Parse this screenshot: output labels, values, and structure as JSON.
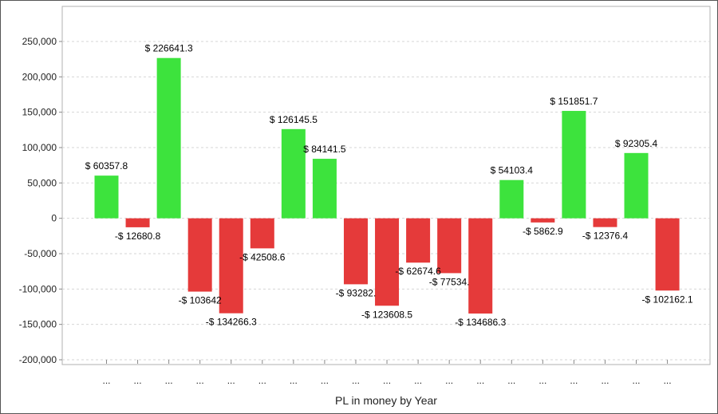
{
  "chart_data": {
    "type": "bar",
    "xlabel": "PL in money by Year",
    "ylabel": "",
    "ylim": [
      -200000,
      250000
    ],
    "yticks": [
      250000,
      200000,
      150000,
      100000,
      50000,
      0,
      -50000,
      -100000,
      -150000,
      -200000
    ],
    "ytick_labels": [
      "250,000",
      "200,000",
      "150,000",
      "100,000",
      "50,000",
      "0",
      "-50,000",
      "-100,000",
      "-150,000",
      "-200,000"
    ],
    "grid": true,
    "positive_color": "#3de33d",
    "negative_color": "#e53a3a",
    "categories": [
      "...",
      "...",
      "...",
      "...",
      "...",
      "...",
      "...",
      "...",
      "...",
      "...",
      "...",
      "...",
      "...",
      "...",
      "...",
      "...",
      "...",
      "...",
      "..."
    ],
    "values": [
      60357.8,
      -12680.8,
      226641.3,
      -103642,
      -134266.3,
      -42508.6,
      126145.5,
      84141.5,
      -93282,
      -123608.5,
      -62674.6,
      -77534,
      -134686.3,
      54103.4,
      -5862.9,
      151851.7,
      -12376.4,
      92305.4,
      -102162.1
    ],
    "data_labels": [
      "$ 60357.8",
      "-$ 12680.8",
      "$ 226641.3",
      "-$ 103642",
      "-$ 134266.3",
      "-$ 42508.6",
      "$ 126145.5",
      "$ 84141.5",
      "-$ 93282.",
      "-$ 123608.5",
      "-$ 62674.6",
      "-$ 77534.",
      "-$ 134686.3",
      "$ 54103.4",
      "-$ 5862.9",
      "$ 151851.7",
      "-$ 12376.4",
      "$ 92305.4",
      "-$ 102162.1"
    ]
  }
}
